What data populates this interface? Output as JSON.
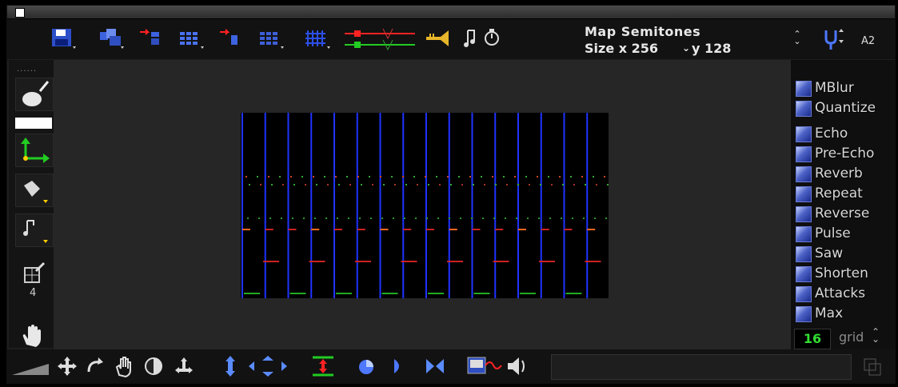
{
  "window": {
    "close_icon": "close-box-icon"
  },
  "toolbar": {
    "tools": [
      {
        "id": "save",
        "icon": "floppy-disk-icon"
      },
      {
        "id": "open",
        "icon": "open-files-icon"
      },
      {
        "id": "copy-arrow",
        "icon": "red-arrow-copy-icon"
      },
      {
        "id": "grid-blue",
        "icon": "blue-grid-icon"
      },
      {
        "id": "copy-arrow-2",
        "icon": "red-arrow-paste-icon"
      },
      {
        "id": "grid-dotted",
        "icon": "dotted-grid-icon"
      },
      {
        "id": "grid-mesh",
        "icon": "mesh-grid-icon"
      },
      {
        "id": "mixer",
        "icon": "red-green-sliders-icon"
      },
      {
        "id": "trumpet",
        "icon": "trumpet-icon"
      },
      {
        "id": "note-timer",
        "icon": "note-metronome-icon"
      }
    ],
    "map_title": "Map Semitones",
    "size_x_label": "Size x 256",
    "size_y_label": "y 128",
    "tuning_icon": "tuning-fork-icon",
    "pitch_label": "A2"
  },
  "left_tools": [
    {
      "id": "brush",
      "icon": "paint-brush-icon"
    },
    {
      "id": "color-swatch",
      "icon": "color-swatch-icon"
    },
    {
      "id": "axis",
      "icon": "axis-arrows-icon"
    },
    {
      "id": "fill",
      "icon": "fill-bucket-icon"
    },
    {
      "id": "note",
      "icon": "note-icon"
    },
    {
      "id": "pencil-grid",
      "icon": "pencil-grid-icon",
      "value": "4"
    },
    {
      "id": "hand",
      "icon": "hand-icon"
    }
  ],
  "effects": [
    "MBlur",
    "Quantize",
    "Echo",
    "Pre-Echo",
    "Reverb",
    "Repeat",
    "Reverse",
    "Pulse",
    "Saw",
    "Shorten",
    "Attacks",
    "Max"
  ],
  "grid": {
    "value": "16",
    "label": "grid"
  },
  "bottom_tools": [
    {
      "id": "move",
      "icon": "move-arrows-icon"
    },
    {
      "id": "rotate",
      "icon": "rotate-arrow-icon"
    },
    {
      "id": "grab",
      "icon": "grab-hand-icon"
    },
    {
      "id": "invert",
      "icon": "invert-circle-icon"
    },
    {
      "id": "expand",
      "icon": "expand-arrows-icon"
    },
    {
      "id": "vert-stretch",
      "icon": "vertical-stretch-icon"
    },
    {
      "id": "nudge",
      "icon": "nudge-arrows-icon"
    },
    {
      "id": "center",
      "icon": "center-lines-icon"
    },
    {
      "id": "spin",
      "icon": "spin-icon"
    },
    {
      "id": "play",
      "icon": "play-arrow-icon"
    },
    {
      "id": "flip",
      "icon": "flip-horizontal-icon"
    },
    {
      "id": "waveform",
      "icon": "waveform-icon"
    },
    {
      "id": "speaker",
      "icon": "speaker-icon"
    }
  ],
  "colors": {
    "accent_blue": "#1f33ff",
    "red": "#ff2222",
    "green": "#22cc22",
    "effect_text": "#d8d8d8",
    "grid_value": "#33dd33"
  },
  "plot_data": {
    "columns": 16,
    "rows": [
      {
        "label": "row-1",
        "color": "#cc4422",
        "style": "dots"
      },
      {
        "label": "row-2",
        "color": "#22aa22",
        "style": "dots"
      },
      {
        "label": "row-3",
        "color": "#cc2222",
        "style": "dash"
      },
      {
        "label": "row-4",
        "color": "#22aa22",
        "style": "dash"
      }
    ]
  }
}
